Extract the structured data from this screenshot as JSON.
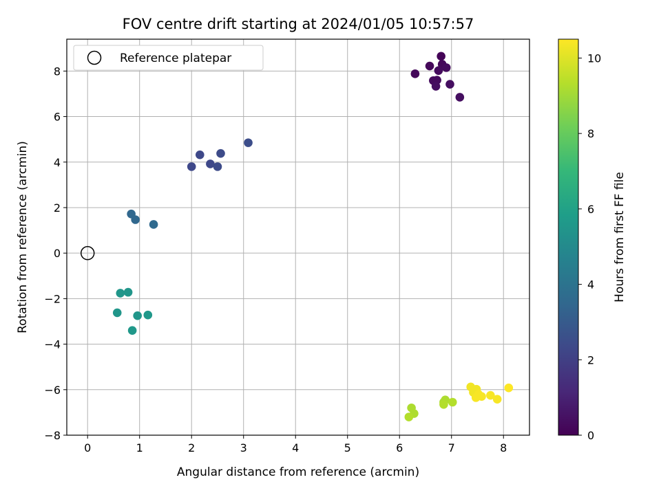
{
  "chart_data": {
    "type": "scatter",
    "title": "FOV centre drift starting at 2024/01/05 10:57:57",
    "xlabel": "Angular distance from reference (arcmin)",
    "ylabel": "Rotation from reference (arcmin)",
    "xlim": [
      -0.4,
      8.5
    ],
    "ylim": [
      -8,
      9.4
    ],
    "xticks": [
      0,
      1,
      2,
      3,
      4,
      5,
      6,
      7,
      8
    ],
    "yticks": [
      -8,
      -6,
      -4,
      -2,
      0,
      2,
      4,
      6,
      8
    ],
    "grid": true,
    "legend": {
      "position": "top-left",
      "entries": [
        "Reference platepar"
      ]
    },
    "reference_point": {
      "x": 0,
      "y": 0
    },
    "colorbar": {
      "label": "Hours from first FF file",
      "range": [
        0,
        10.5
      ],
      "ticks": [
        0,
        2,
        4,
        6,
        8,
        10
      ],
      "colormap": [
        "#440154",
        "#482878",
        "#3e4989",
        "#31688e",
        "#26828e",
        "#1f9e89",
        "#35b779",
        "#6ece58",
        "#b5de2b",
        "#fde725"
      ]
    },
    "points": [
      {
        "x": 6.8,
        "y": 8.65,
        "c": 0.1
      },
      {
        "x": 6.58,
        "y": 8.22,
        "c": 0.2
      },
      {
        "x": 6.82,
        "y": 8.3,
        "c": 0.2
      },
      {
        "x": 6.9,
        "y": 8.15,
        "c": 0.3
      },
      {
        "x": 6.75,
        "y": 8.02,
        "c": 0.3
      },
      {
        "x": 6.3,
        "y": 7.88,
        "c": 0.2
      },
      {
        "x": 6.65,
        "y": 7.58,
        "c": 0.3
      },
      {
        "x": 6.72,
        "y": 7.6,
        "c": 0.3
      },
      {
        "x": 6.97,
        "y": 7.42,
        "c": 0.4
      },
      {
        "x": 6.7,
        "y": 7.33,
        "c": 0.4
      },
      {
        "x": 7.16,
        "y": 6.85,
        "c": 0.4
      },
      {
        "x": 2.0,
        "y": 3.8,
        "c": 2.3
      },
      {
        "x": 2.16,
        "y": 4.32,
        "c": 2.3
      },
      {
        "x": 2.36,
        "y": 3.92,
        "c": 2.3
      },
      {
        "x": 2.5,
        "y": 3.8,
        "c": 2.4
      },
      {
        "x": 2.56,
        "y": 4.38,
        "c": 2.4
      },
      {
        "x": 3.09,
        "y": 4.85,
        "c": 2.5
      },
      {
        "x": 0.84,
        "y": 1.72,
        "c": 3.5
      },
      {
        "x": 0.92,
        "y": 1.47,
        "c": 3.5
      },
      {
        "x": 1.27,
        "y": 1.26,
        "c": 3.6
      },
      {
        "x": 0.63,
        "y": -1.76,
        "c": 5.5
      },
      {
        "x": 0.78,
        "y": -1.72,
        "c": 5.5
      },
      {
        "x": 0.57,
        "y": -2.62,
        "c": 5.5
      },
      {
        "x": 0.96,
        "y": -2.75,
        "c": 5.5
      },
      {
        "x": 1.16,
        "y": -2.72,
        "c": 5.6
      },
      {
        "x": 0.86,
        "y": -3.4,
        "c": 5.6
      },
      {
        "x": 6.23,
        "y": -6.8,
        "c": 9.2
      },
      {
        "x": 6.28,
        "y": -7.05,
        "c": 9.2
      },
      {
        "x": 6.18,
        "y": -7.2,
        "c": 9.3
      },
      {
        "x": 6.85,
        "y": -6.55,
        "c": 9.2
      },
      {
        "x": 6.88,
        "y": -6.45,
        "c": 9.2
      },
      {
        "x": 6.85,
        "y": -6.65,
        "c": 9.3
      },
      {
        "x": 7.02,
        "y": -6.55,
        "c": 9.3
      },
      {
        "x": 7.37,
        "y": -5.88,
        "c": 10.3
      },
      {
        "x": 7.42,
        "y": -6.12,
        "c": 10.3
      },
      {
        "x": 7.48,
        "y": -5.98,
        "c": 10.3
      },
      {
        "x": 7.52,
        "y": -6.2,
        "c": 10.4
      },
      {
        "x": 7.47,
        "y": -6.35,
        "c": 10.4
      },
      {
        "x": 7.58,
        "y": -6.3,
        "c": 10.4
      },
      {
        "x": 7.75,
        "y": -6.25,
        "c": 10.4
      },
      {
        "x": 7.88,
        "y": -6.42,
        "c": 10.4
      },
      {
        "x": 8.1,
        "y": -5.92,
        "c": 10.5
      }
    ]
  }
}
